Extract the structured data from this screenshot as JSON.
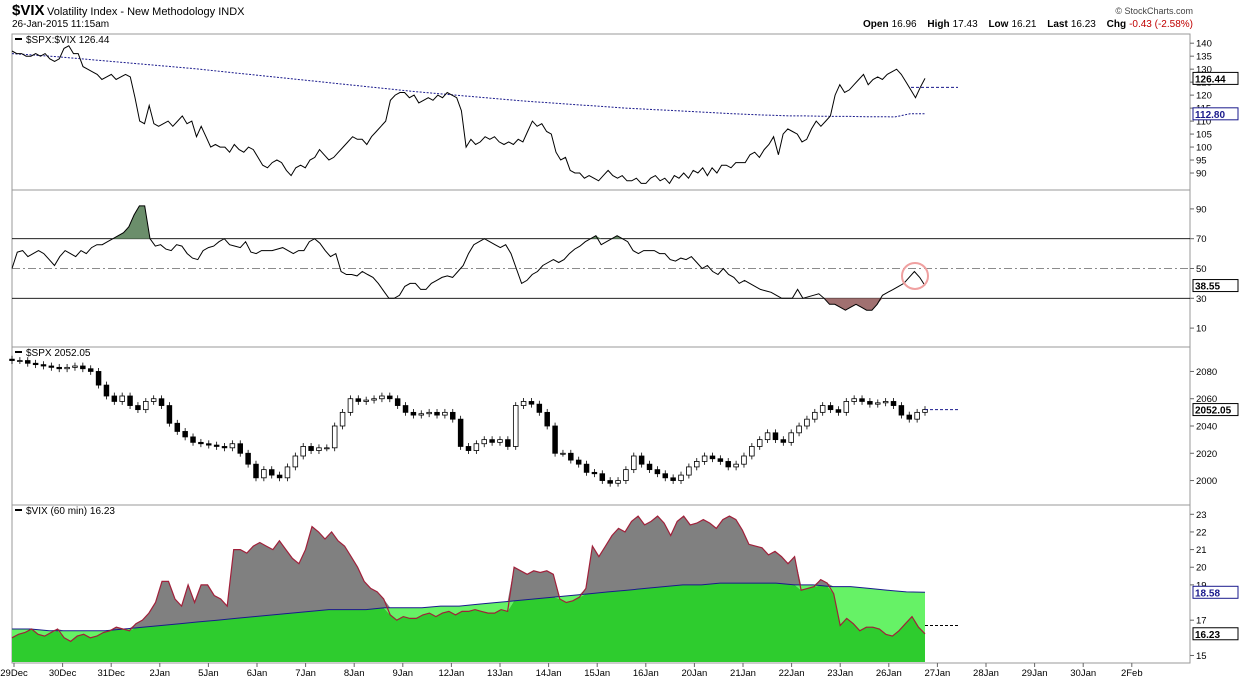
{
  "header": {
    "symbol": "$VIX",
    "name": "Volatility Index - New Methodology  INDX",
    "date": "26-Jan-2015 11:15am",
    "brand": "© StockCharts.com",
    "open_label": "Open",
    "open": "16.96",
    "high_label": "High",
    "high": "17.43",
    "low_label": "Low",
    "low": "16.21",
    "last_label": "Last",
    "last": "16.23",
    "chg_label": "Chg",
    "chg": "-0.43 (-2.58%)"
  },
  "colors": {
    "price_line": "#000000",
    "ma_line": "#1a1a8c",
    "rsi_fill_over": "#6b8e6b",
    "rsi_fill_under": "#a07070",
    "vix_gray": "#808080",
    "vix_green_dark": "#2ecc2e",
    "vix_green_light": "#66f266",
    "vix_line": "#a0203a",
    "highlight_circle": "#f0a0a0"
  },
  "chart_data": [
    {
      "type": "line",
      "panel": "ratio",
      "label": "$SPX:$VIX 126.44",
      "ylim": [
        85,
        142
      ],
      "yticks": [
        90,
        95,
        100,
        105,
        110,
        115,
        120,
        125,
        130,
        135,
        140
      ],
      "series": [
        {
          "name": "$SPX:$VIX",
          "values": [
            137,
            136,
            136,
            135,
            135,
            136,
            135,
            136,
            134,
            133,
            134,
            138,
            139,
            136,
            136,
            131,
            130,
            129,
            128,
            126,
            127,
            128,
            126,
            127,
            128,
            127,
            119,
            110,
            109,
            116,
            109,
            108,
            109,
            110,
            108,
            110,
            112,
            109,
            110,
            104,
            108,
            104,
            100,
            101,
            100,
            100,
            98,
            101,
            99,
            98,
            100,
            99,
            96,
            93,
            92,
            94,
            95,
            94,
            91,
            89,
            92,
            93,
            92,
            95,
            96,
            99,
            97,
            95,
            96,
            98,
            100,
            102,
            104,
            103,
            103,
            101,
            104,
            106,
            108,
            110,
            118,
            120,
            121,
            121,
            119,
            120,
            117,
            118,
            119,
            118,
            120,
            119,
            121,
            120,
            119,
            114,
            100,
            103,
            101,
            102,
            104,
            103,
            104,
            102,
            101,
            102,
            101,
            103,
            102,
            106,
            110,
            108,
            109,
            106,
            105,
            98,
            95,
            96,
            91,
            90,
            90,
            88,
            89,
            88,
            87,
            89,
            91,
            89,
            88,
            89,
            87,
            87,
            88,
            86,
            86,
            88,
            89,
            87,
            88,
            86,
            89,
            88,
            90,
            88,
            91,
            90,
            92,
            89,
            92,
            90,
            93,
            93,
            92,
            94,
            94,
            94,
            97,
            98,
            96,
            99,
            101,
            104,
            97,
            105,
            107,
            106,
            105,
            102,
            103,
            107,
            110,
            108,
            110,
            112,
            120,
            124,
            121,
            122,
            124,
            126,
            128,
            124,
            126,
            127,
            126,
            128,
            129,
            130,
            128,
            125,
            122,
            119,
            123,
            126.44
          ]
        },
        {
          "name": "MA",
          "values": [
            136,
            135.6,
            135.2,
            134.8,
            134.3,
            133.8,
            133.3,
            132.8,
            132.3,
            131.8,
            131.3,
            130.8,
            130.3,
            129.7,
            129.1,
            128.5,
            127.9,
            127.3,
            126.7,
            126.1,
            125.5,
            124.9,
            124.3,
            123.7,
            123.1,
            122.5,
            121.9,
            121.3,
            120.8,
            120.3,
            119.8,
            119.3,
            118.8,
            118.3,
            117.8,
            117.4,
            117,
            116.6,
            116.2,
            115.8,
            115.4,
            115,
            114.7,
            114.4,
            114.1,
            113.8,
            113.5,
            113.2,
            112.9,
            112.6,
            112.4,
            112.2,
            112,
            112,
            111.9,
            111.8,
            111.8,
            111.7,
            111.7,
            111.6,
            112.8,
            112.8
          ]
        }
      ]
    },
    {
      "type": "line",
      "panel": "rsi",
      "ylim": [
        0,
        100
      ],
      "yticks": [
        10,
        30,
        50,
        70,
        90
      ],
      "thresholds": [
        30,
        50,
        70
      ],
      "last_value": "38.55",
      "series": [
        {
          "name": "RSI",
          "values": [
            50,
            61,
            62,
            58,
            60,
            62,
            60,
            56,
            52,
            58,
            62,
            60,
            58,
            62,
            60,
            64,
            66,
            66,
            68,
            70,
            72,
            74,
            78,
            86,
            92,
            92,
            70,
            65,
            66,
            63,
            62,
            66,
            65,
            60,
            57,
            56,
            62,
            64,
            65,
            68,
            70,
            66,
            65,
            64,
            68,
            61,
            60,
            62,
            62,
            62,
            63,
            64,
            62,
            60,
            62,
            62,
            68,
            70,
            67,
            62,
            58,
            60,
            48,
            46,
            46,
            45,
            48,
            46,
            44,
            40,
            35,
            30,
            30,
            32,
            38,
            40,
            40,
            36,
            36,
            40,
            42,
            44,
            45,
            44,
            48,
            52,
            60,
            66,
            68,
            70,
            68,
            66,
            64,
            66,
            60,
            50,
            40,
            42,
            46,
            48,
            52,
            54,
            56,
            54,
            56,
            60,
            63,
            65,
            68,
            70,
            72,
            66,
            68,
            70,
            72,
            70,
            68,
            62,
            60,
            62,
            62,
            62,
            60,
            60,
            56,
            55,
            57,
            56,
            58,
            54,
            50,
            52,
            48,
            46,
            50,
            46,
            44,
            40,
            42,
            40,
            38,
            36,
            35,
            34,
            32,
            30,
            30,
            30,
            36,
            30,
            31,
            32,
            33,
            30,
            26,
            26,
            24,
            22,
            24,
            26,
            24,
            22,
            22,
            26,
            32,
            34,
            36,
            38,
            40,
            44,
            48,
            44,
            38.55
          ]
        }
      ]
    },
    {
      "type": "candlestick",
      "panel": "spx",
      "label": "$SPX 2052.05",
      "ylim": [
        1985,
        2095
      ],
      "yticks": [
        2000,
        2020,
        2040,
        2060,
        2080
      ],
      "last_value": "2052.05",
      "close": [
        2088,
        2088,
        2086,
        2085,
        2084,
        2083,
        2082,
        2083,
        2084,
        2082,
        2080,
        2070,
        2062,
        2058,
        2062,
        2055,
        2052,
        2058,
        2060,
        2055,
        2042,
        2036,
        2032,
        2028,
        2027,
        2026,
        2025,
        2024,
        2027,
        2020,
        2012,
        2002,
        2008,
        2004,
        2002,
        2010,
        2018,
        2025,
        2022,
        2024,
        2024,
        2040,
        2050,
        2060,
        2058,
        2059,
        2060,
        2062,
        2060,
        2055,
        2050,
        2048,
        2049,
        2050,
        2048,
        2050,
        2045,
        2025,
        2022,
        2027,
        2030,
        2028,
        2030,
        2025,
        2055,
        2058,
        2056,
        2050,
        2040,
        2020,
        2020,
        2015,
        2012,
        2006,
        2005,
        2000,
        1998,
        2000,
        2008,
        2018,
        2012,
        2008,
        2005,
        2002,
        2000,
        2004,
        2010,
        2014,
        2018,
        2016,
        2014,
        2010,
        2012,
        2018,
        2025,
        2030,
        2035,
        2030,
        2028,
        2035,
        2040,
        2045,
        2050,
        2055,
        2052,
        2050,
        2058,
        2060,
        2058,
        2056,
        2057,
        2058,
        2055,
        2048,
        2045,
        2050,
        2052.05
      ]
    },
    {
      "type": "area",
      "panel": "vix",
      "label": "$VIX (60 min) 16.23",
      "ylim": [
        14.8,
        23.3
      ],
      "yticks": [
        15,
        17,
        19,
        20,
        21,
        22,
        23
      ],
      "last_value": "16.23",
      "ma_last": "18.58",
      "series": [
        {
          "name": "$VIX",
          "values": [
            16,
            16.2,
            16.3,
            16.5,
            16.2,
            16.1,
            16.3,
            16.5,
            16,
            15.8,
            16.1,
            16.2,
            16,
            16.1,
            16.3,
            16.4,
            16.6,
            16.5,
            16.4,
            16.8,
            17,
            17.4,
            18,
            19.2,
            19.2,
            18.2,
            17.8,
            19,
            18,
            19,
            19,
            18.4,
            18.2,
            17.8,
            21,
            21,
            20.8,
            21.2,
            21.4,
            21.2,
            21,
            21.5,
            21,
            20.5,
            20.2,
            21,
            22.3,
            22,
            21.6,
            22,
            21.5,
            21.2,
            20.6,
            20,
            19.2,
            18.8,
            18.6,
            18.2,
            17.3,
            17,
            17.2,
            17.1,
            17.1,
            17.3,
            17.4,
            17.2,
            17.4,
            17.5,
            17.3,
            17.5,
            17.5,
            17.6,
            17.5,
            17.4,
            17.4,
            17.6,
            17.5,
            20,
            19.8,
            19.6,
            19.8,
            19.7,
            19.8,
            19.6,
            18.2,
            18,
            18.1,
            18.3,
            18.8,
            21.2,
            20.6,
            21.2,
            21.8,
            22.2,
            22,
            22.6,
            22.9,
            22.4,
            22.6,
            22.9,
            22.5,
            21.8,
            22.6,
            22.9,
            22.4,
            22.5,
            22.7,
            22.5,
            22.2,
            22.7,
            22.9,
            22.7,
            22.1,
            21.3,
            21.2,
            21.1,
            20.7,
            20.9,
            20.6,
            20.2,
            20.6,
            18.7,
            18.8,
            18.9,
            19.3,
            19.1,
            18.5,
            16.7,
            17.1,
            16.8,
            16.4,
            16.6,
            16.6,
            16.5,
            16.2,
            16.1,
            16.4,
            16.8,
            17.2,
            16.6,
            16.23
          ]
        },
        {
          "name": "MA",
          "values": [
            16.5,
            16.5,
            16.4,
            16.4,
            16.4,
            16.4,
            16.5,
            16.6,
            16.7,
            16.8,
            16.9,
            17,
            17.1,
            17.2,
            17.3,
            17.4,
            17.5,
            17.6,
            17.6,
            17.6,
            17.7,
            17.7,
            17.7,
            17.8,
            17.8,
            17.9,
            18,
            18.1,
            18.2,
            18.3,
            18.4,
            18.5,
            18.6,
            18.7,
            18.8,
            18.9,
            19,
            19,
            19.1,
            19.1,
            19.1,
            19.1,
            19,
            19,
            18.9,
            18.9,
            18.8,
            18.7,
            18.6,
            18.58
          ]
        }
      ]
    }
  ],
  "xaxis": {
    "labels": [
      "29Dec",
      "30Dec",
      "31Dec",
      "2Jan",
      "5Jan",
      "6Jan",
      "7Jan",
      "8Jan",
      "9Jan",
      "12Jan",
      "13Jan",
      "14Jan",
      "15Jan",
      "16Jan",
      "20Jan",
      "21Jan",
      "22Jan",
      "23Jan",
      "26Jan",
      "27Jan",
      "28Jan",
      "29Jan",
      "30Jan",
      "2Feb"
    ]
  }
}
